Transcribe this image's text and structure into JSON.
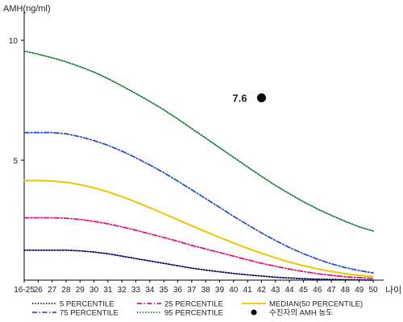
{
  "chart_data": {
    "type": "line",
    "ylabel": "AMH(ng/ml)",
    "xlabel": "나이",
    "ylim": [
      0,
      11
    ],
    "yticks": [
      {
        "value": 5,
        "label": "5"
      },
      {
        "value": 10,
        "label": "10"
      }
    ],
    "categories": [
      "16-25",
      "26",
      "27",
      "28",
      "29",
      "30",
      "31",
      "32",
      "33",
      "34",
      "35",
      "36",
      "37",
      "38",
      "39",
      "40",
      "41",
      "42",
      "43",
      "44",
      "45",
      "46",
      "47",
      "48",
      "49",
      "50"
    ],
    "series": [
      {
        "name": "5 PERCENTILE",
        "color": "#0a0a55",
        "dash": "dot",
        "values": [
          1.25,
          1.25,
          1.25,
          1.25,
          1.22,
          1.17,
          1.1,
          1.0,
          0.9,
          0.8,
          0.7,
          0.6,
          0.5,
          0.42,
          0.35,
          0.28,
          0.22,
          0.17,
          0.12,
          0.09,
          0.06,
          0.04,
          0.03,
          0.02,
          0.01,
          0.0
        ]
      },
      {
        "name": "25 PERCENTILE",
        "color": "#e0157a",
        "dash": "dashdot",
        "values": [
          2.6,
          2.6,
          2.6,
          2.58,
          2.53,
          2.45,
          2.35,
          2.22,
          2.08,
          1.93,
          1.78,
          1.62,
          1.45,
          1.3,
          1.15,
          1.0,
          0.85,
          0.7,
          0.58,
          0.46,
          0.36,
          0.27,
          0.2,
          0.14,
          0.1,
          0.07
        ]
      },
      {
        "name": "MEDIAN(50 PERCENTILE)",
        "color": "#f2c400",
        "dash": "solid",
        "values": [
          4.15,
          4.15,
          4.13,
          4.08,
          3.98,
          3.85,
          3.68,
          3.48,
          3.26,
          3.02,
          2.77,
          2.52,
          2.27,
          2.02,
          1.78,
          1.55,
          1.33,
          1.12,
          0.93,
          0.75,
          0.6,
          0.47,
          0.36,
          0.27,
          0.2,
          0.15
        ]
      },
      {
        "name": "75 PERCENTILE",
        "color": "#2b4fcf",
        "dash": "dashdot",
        "values": [
          6.15,
          6.15,
          6.15,
          6.1,
          5.98,
          5.82,
          5.62,
          5.38,
          5.1,
          4.8,
          4.48,
          4.13,
          3.77,
          3.4,
          3.03,
          2.66,
          2.31,
          1.97,
          1.65,
          1.36,
          1.1,
          0.88,
          0.68,
          0.52,
          0.4,
          0.3
        ]
      },
      {
        "name": "95 PERCENTILE",
        "color": "#1f7a3d",
        "dash": "dot",
        "values": [
          9.55,
          9.42,
          9.27,
          9.1,
          8.9,
          8.67,
          8.4,
          8.1,
          7.78,
          7.45,
          7.1,
          6.72,
          6.32,
          5.92,
          5.52,
          5.12,
          4.72,
          4.33,
          3.95,
          3.6,
          3.27,
          2.97,
          2.7,
          2.45,
          2.22,
          2.05
        ]
      }
    ],
    "point": {
      "name": "수진자의 AMH 농도",
      "x": "42",
      "value": 7.6,
      "label": "7.6",
      "color": "#000000"
    },
    "legend": [
      {
        "name": "5 PERCENTILE",
        "kind": "line",
        "color": "#0a0a55",
        "dash": "dot"
      },
      {
        "name": "25 PERCENTILE",
        "kind": "line",
        "color": "#e0157a",
        "dash": "dashdot"
      },
      {
        "name": "MEDIAN(50 PERCENTILE)",
        "kind": "line",
        "color": "#f2c400",
        "dash": "solid"
      },
      {
        "name": "75 PERCENTILE",
        "kind": "line",
        "color": "#2b4fcf",
        "dash": "dashdot"
      },
      {
        "name": "95 PERCENTILE",
        "kind": "line",
        "color": "#1f7a3d",
        "dash": "dot"
      },
      {
        "name": "수진자의 AMH 농도",
        "kind": "marker",
        "color": "#000000"
      }
    ],
    "legend_position": "bottom",
    "grid": false
  }
}
